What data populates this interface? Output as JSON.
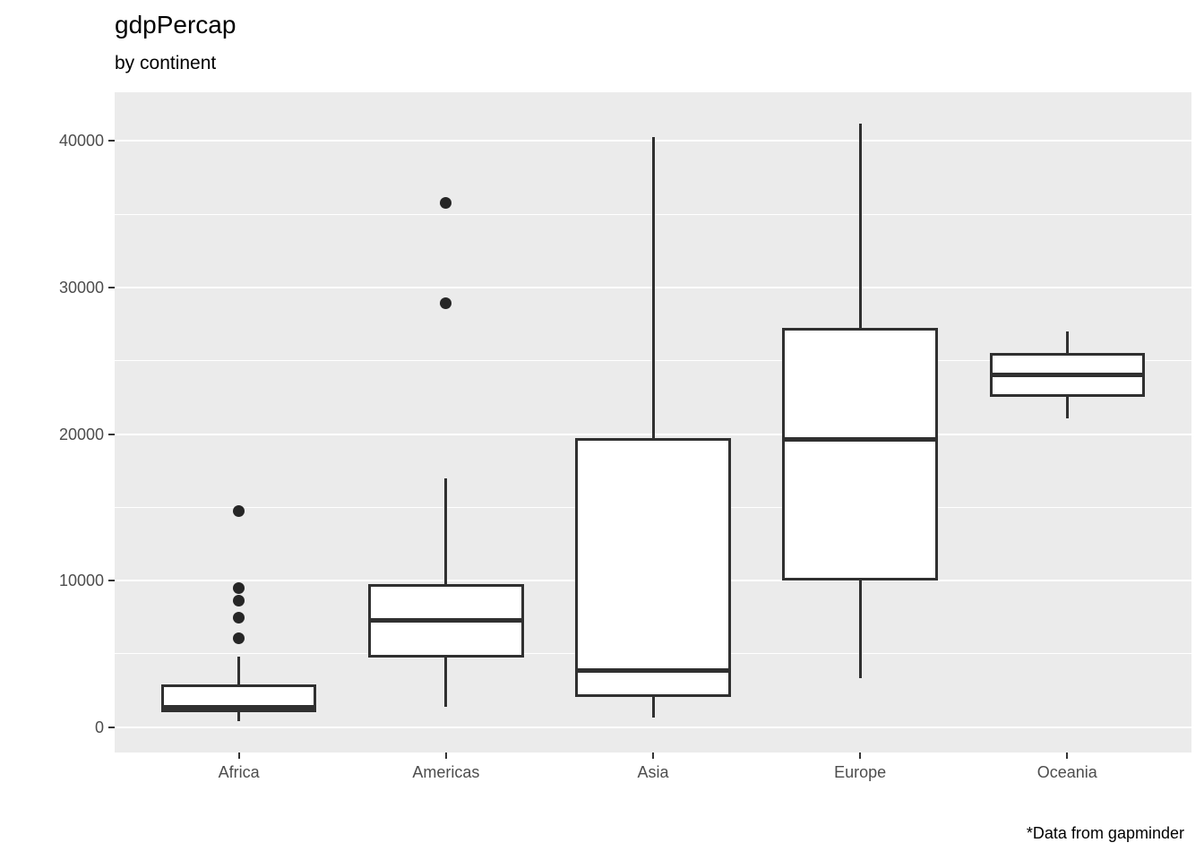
{
  "title": "gdpPercap",
  "subtitle": "by continent",
  "caption": "*Data from gapminder",
  "chart_data": {
    "type": "boxplot",
    "title": "gdpPercap",
    "subtitle": "by continent",
    "caption": "*Data from gapminder",
    "xlabel": "",
    "ylabel": "",
    "grid": true,
    "legend": false,
    "categories": [
      "Africa",
      "Americas",
      "Asia",
      "Europe",
      "Oceania"
    ],
    "series": [
      {
        "category": "Africa",
        "whisker_low": 430,
        "q1": 1030,
        "median": 1350,
        "q3": 2940,
        "whisker_high": 4800,
        "outliers": [
          14720,
          9470,
          8650,
          7480,
          6080
        ]
      },
      {
        "category": "Americas",
        "whisker_low": 1400,
        "q1": 4770,
        "median": 7280,
        "q3": 9790,
        "whisker_high": 17000,
        "outliers": [
          35770,
          28950
        ]
      },
      {
        "category": "Asia",
        "whisker_low": 630,
        "q1": 2060,
        "median": 3840,
        "q3": 19700,
        "whisker_high": 40300,
        "outliers": []
      },
      {
        "category": "Europe",
        "whisker_low": 3350,
        "q1": 10010,
        "median": 19650,
        "q3": 27240,
        "whisker_high": 41200,
        "outliers": []
      },
      {
        "category": "Oceania",
        "whisker_low": 21050,
        "q1": 22540,
        "median": 24020,
        "q3": 25510,
        "whisker_high": 27000,
        "outliers": []
      }
    ],
    "y_axis": {
      "ticks_major": [
        0,
        10000,
        20000,
        30000,
        40000
      ],
      "ticks_minor": [
        5000,
        15000,
        25000,
        35000
      ],
      "lim": [
        -1736,
        43330
      ]
    },
    "colors": {
      "panel_bg": "#EBEBEB",
      "grid": "#FFFFFF",
      "box_stroke": "#303030",
      "box_fill": "#FFFFFF",
      "outlier": "#262626",
      "axis_text": "#4D4D4D",
      "tick_mark": "#333333",
      "title_text": "#000000"
    }
  }
}
